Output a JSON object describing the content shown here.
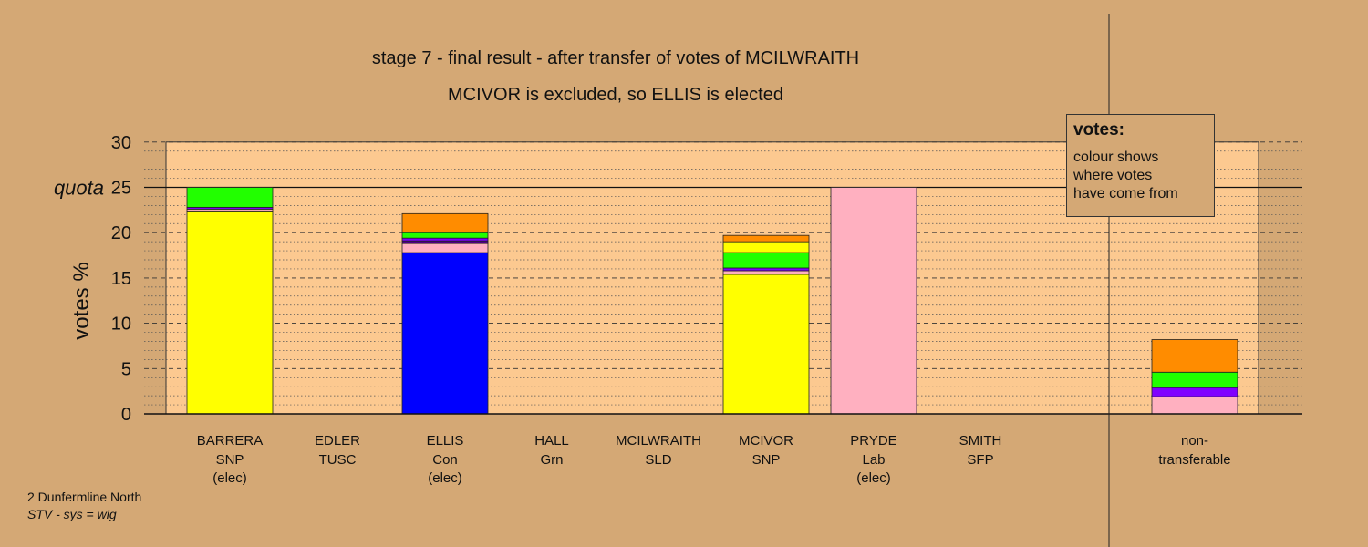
{
  "title_line1": "stage 7 - final result - after transfer of votes of MCILWRAITH",
  "title_line2": "MCIVOR is excluded, so ELLIS is elected",
  "legend": {
    "title": "votes:",
    "lines": [
      "colour shows",
      "where votes",
      "have come from"
    ]
  },
  "footer": {
    "ward": "2 Dunfermline North",
    "system": "STV - sys = wig"
  },
  "colors": {
    "background": "#d4a875",
    "plot_background": "#fcc990",
    "SNP": "#ffff00",
    "Con": "#0000ff",
    "Lab": "#ffb0c0",
    "Grn": "#22ff00",
    "SLD": "#ff8c00",
    "TUSC": "#8000ff",
    "SFP": "#4b0082"
  },
  "chart_data": {
    "type": "bar",
    "stacked": true,
    "ylabel": "votes %",
    "ylim": [
      0,
      30
    ],
    "yticks": [
      0,
      5,
      10,
      15,
      20,
      25,
      30
    ],
    "quota": 25,
    "quota_label": "quota",
    "grid": true,
    "candidates": [
      {
        "name": "BARRERA",
        "party": "SNP",
        "status": "(elec)",
        "segments": [
          {
            "from": "SNP",
            "value": 22.4
          },
          {
            "from": "Lab",
            "value": 0.2
          },
          {
            "from": "TUSC",
            "value": 0.2
          },
          {
            "from": "Grn",
            "value": 2.2
          }
        ]
      },
      {
        "name": "EDLER",
        "party": "TUSC",
        "status": "",
        "segments": []
      },
      {
        "name": "ELLIS",
        "party": "Con",
        "status": "(elec)",
        "segments": [
          {
            "from": "Con",
            "value": 17.8
          },
          {
            "from": "Lab",
            "value": 1.0
          },
          {
            "from": "SFP",
            "value": 0.3
          },
          {
            "from": "TUSC",
            "value": 0.3
          },
          {
            "from": "Grn",
            "value": 0.6
          },
          {
            "from": "SLD",
            "value": 2.1
          }
        ]
      },
      {
        "name": "HALL",
        "party": "Grn",
        "status": "",
        "segments": []
      },
      {
        "name": "MCILWRAITH",
        "party": "SLD",
        "status": "",
        "segments": []
      },
      {
        "name": "MCIVOR",
        "party": "SNP",
        "status": "",
        "segments": [
          {
            "from": "SNP",
            "value": 15.4
          },
          {
            "from": "Lab",
            "value": 0.4
          },
          {
            "from": "TUSC",
            "value": 0.3
          },
          {
            "from": "Grn",
            "value": 1.7
          },
          {
            "from": "SNP",
            "value": 1.2
          },
          {
            "from": "SLD",
            "value": 0.7
          }
        ]
      },
      {
        "name": "PRYDE",
        "party": "Lab",
        "status": "(elec)",
        "segments": [
          {
            "from": "Lab",
            "value": 25.0
          }
        ]
      },
      {
        "name": "SMITH",
        "party": "SFP",
        "status": "",
        "segments": []
      }
    ],
    "non_transferable": {
      "label_line1": "non-",
      "label_line2": "transferable",
      "segments": [
        {
          "from": "Lab",
          "value": 1.9
        },
        {
          "from": "TUSC",
          "value": 1.0
        },
        {
          "from": "Grn",
          "value": 1.7
        },
        {
          "from": "SLD",
          "value": 3.6
        }
      ]
    }
  }
}
